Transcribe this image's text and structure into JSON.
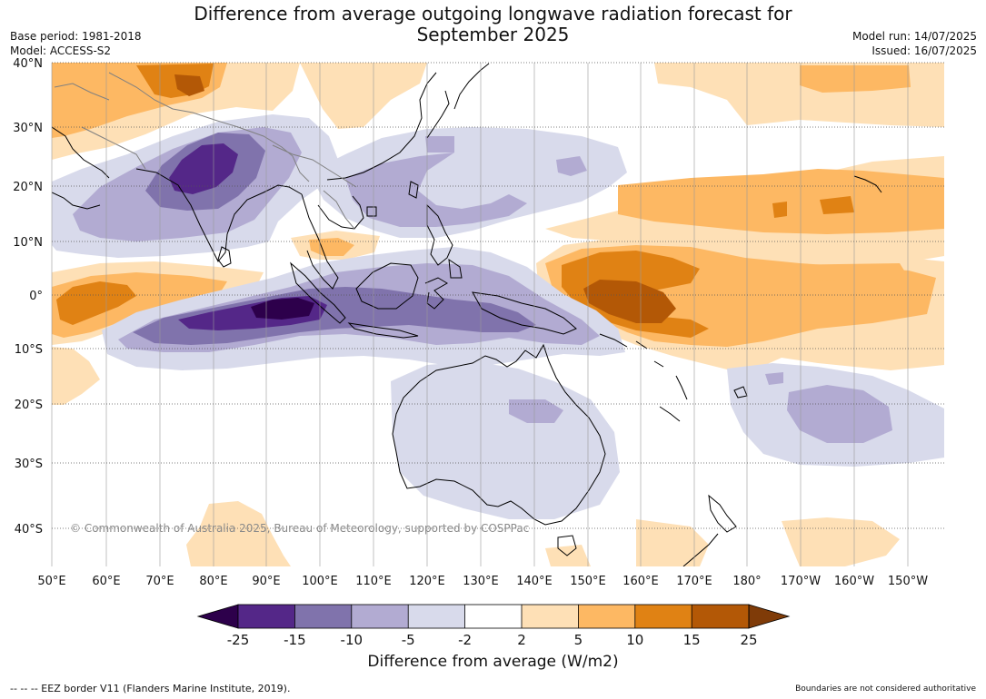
{
  "header": {
    "title_line1": "Difference from average outgoing longwave radiation forecast for",
    "title_line2": "September 2025",
    "base_period": "Base period: 1981-2018",
    "model": "Model: ACCESS-S2",
    "model_run": "Model run: 14/07/2025",
    "issued": "Issued: 16/07/2025"
  },
  "map": {
    "lat_labels": [
      "40°N",
      "30°N",
      "20°N",
      "10°N",
      "0°",
      "10°S",
      "20°S",
      "30°S",
      "40°S"
    ],
    "lon_labels": [
      "50°E",
      "60°E",
      "70°E",
      "80°E",
      "90°E",
      "100°E",
      "110°E",
      "120°E",
      "130°E",
      "140°E",
      "150°E",
      "160°E",
      "170°E",
      "180°",
      "170°W",
      "160°W",
      "150°W"
    ],
    "copyright": "© Commonwealth of Australia 2025, Bureau of Meteorology, supported by COSPPac",
    "colors": {
      "lt_m25": "#2d004b",
      "m25_m15": "#542788",
      "m15_m10": "#8073ac",
      "m10_m5": "#b2abd2",
      "m5_m2": "#d8daeb",
      "m2_2": "#ffffff",
      "p2_5": "#fee0b6",
      "p5_10": "#fdb863",
      "p10_15": "#e08214",
      "p15_25": "#b35806",
      "gt_25": "#7f3b08",
      "coast": "#000000",
      "border": "#808080"
    }
  },
  "colorbar": {
    "ticks": [
      "-25",
      "-15",
      "-10",
      "-5",
      "-2",
      "2",
      "5",
      "10",
      "15",
      "25"
    ],
    "label": "Difference from average (W/m2)"
  },
  "footer": {
    "eez": "--  --  -- EEZ border V11 (Flanders Marine Institute, 2019).",
    "boundaries": "Boundaries are not considered authoritative"
  }
}
